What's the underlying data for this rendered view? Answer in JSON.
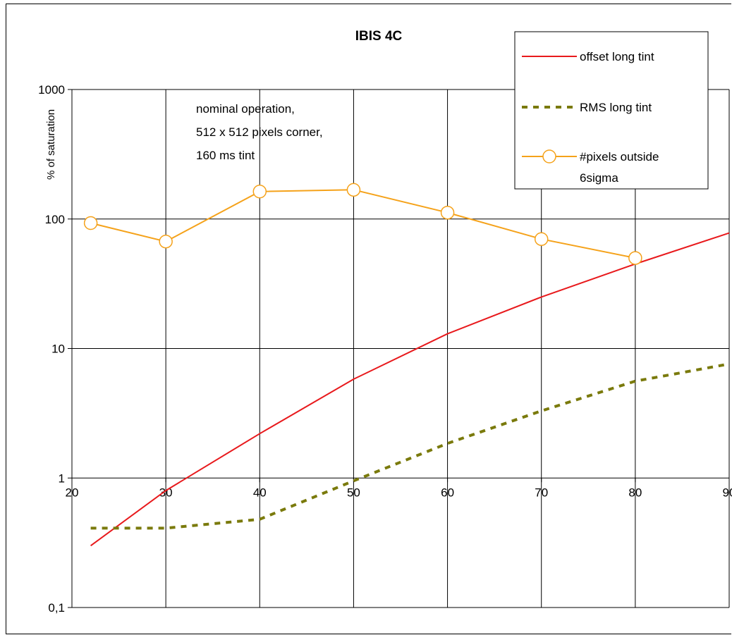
{
  "chart_data": {
    "type": "line",
    "title": "IBIS 4C",
    "xlabel": "",
    "ylabel": "% of saturation",
    "y_scale": "log",
    "ylim": [
      0.1,
      1000
    ],
    "xlim": [
      20,
      90
    ],
    "x_ticks": [
      "20",
      "30",
      "40",
      "50",
      "60",
      "70",
      "80",
      "90"
    ],
    "y_ticks": [
      "0,1",
      "1",
      "10",
      "100",
      "1000"
    ],
    "x_axis_crosses_at": 1,
    "grid": true,
    "legend_position": "top-right",
    "annotation": [
      "nominal operation,",
      "512 x 512 pixels corner,",
      "160 ms tint"
    ],
    "series": [
      {
        "name": "offset long tint",
        "color": "#e8191c",
        "style": "solid",
        "marker": "none",
        "x": [
          22,
          30,
          40,
          50,
          60,
          70,
          80,
          90
        ],
        "y": [
          0.3,
          0.8,
          2.2,
          5.8,
          13,
          25,
          45,
          78
        ]
      },
      {
        "name": "RMS long tint",
        "color": "#7a7a0c",
        "style": "dashed",
        "marker": "none",
        "x": [
          22,
          30,
          40,
          50,
          60,
          70,
          80,
          90
        ],
        "y": [
          0.41,
          0.41,
          0.48,
          0.95,
          1.85,
          3.3,
          5.6,
          7.6
        ]
      },
      {
        "name": "#pixels outside 6sigma",
        "color": "#f5a21a",
        "style": "solid",
        "marker": "circle",
        "x": [
          22,
          30,
          40,
          50,
          60,
          70,
          80
        ],
        "y": [
          93,
          67,
          163,
          168,
          112,
          70,
          50
        ]
      }
    ]
  }
}
